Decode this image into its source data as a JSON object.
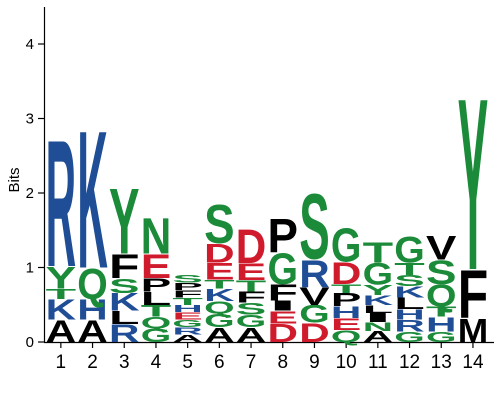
{
  "chart_data": {
    "type": "sequence-logo",
    "title": "",
    "xlabel": "",
    "ylabel": "Bits",
    "ylim": [
      0,
      4.5
    ],
    "yticks": [
      0,
      1,
      2,
      3,
      4
    ],
    "colors": {
      "basic": "#1f4e96",
      "polar": "#1b8b3a",
      "acidic": "#d01b2d",
      "hydrophobic": "#000000"
    },
    "positions": [
      {
        "label": "1",
        "stack": [
          [
            "A",
            0.3,
            "hydrophobic"
          ],
          [
            "K",
            0.28,
            "basic"
          ],
          [
            "T",
            0.14,
            "polar"
          ],
          [
            "Y",
            0.3,
            "polar"
          ],
          [
            "R",
            1.75,
            "basic"
          ]
        ]
      },
      {
        "label": "2",
        "stack": [
          [
            "A",
            0.3,
            "hydrophobic"
          ],
          [
            "H",
            0.28,
            "basic"
          ],
          [
            "Q",
            0.42,
            "polar"
          ],
          [
            "K",
            1.9,
            "basic"
          ]
        ]
      },
      {
        "label": "3",
        "stack": [
          [
            "R",
            0.24,
            "basic"
          ],
          [
            "L",
            0.18,
            "hydrophobic"
          ],
          [
            "K",
            0.24,
            "basic"
          ],
          [
            "S",
            0.2,
            "polar"
          ],
          [
            "F",
            0.33,
            "hydrophobic"
          ],
          [
            "Y",
            0.91,
            "polar"
          ]
        ]
      },
      {
        "label": "4",
        "stack": [
          [
            "G",
            0.19,
            "polar"
          ],
          [
            "Q",
            0.15,
            "polar"
          ],
          [
            "T",
            0.16,
            "polar"
          ],
          [
            "L",
            0.18,
            "hydrophobic"
          ],
          [
            "P",
            0.18,
            "hydrophobic"
          ],
          [
            "E",
            0.33,
            "acidic"
          ],
          [
            "N",
            0.49,
            "polar"
          ]
        ]
      },
      {
        "label": "5",
        "stack": [
          [
            "A",
            0.1,
            "hydrophobic"
          ],
          [
            "R",
            0.1,
            "basic"
          ],
          [
            "G",
            0.1,
            "polar"
          ],
          [
            "E",
            0.1,
            "acidic"
          ],
          [
            "H",
            0.1,
            "basic"
          ],
          [
            "T",
            0.1,
            "polar"
          ],
          [
            "F",
            0.1,
            "hydrophobic"
          ],
          [
            "P",
            0.1,
            "hydrophobic"
          ],
          [
            "S",
            0.11,
            "polar"
          ]
        ]
      },
      {
        "label": "6",
        "stack": [
          [
            "A",
            0.2,
            "hydrophobic"
          ],
          [
            "G",
            0.18,
            "polar"
          ],
          [
            "Q",
            0.17,
            "polar"
          ],
          [
            "K",
            0.17,
            "basic"
          ],
          [
            "T",
            0.12,
            "polar"
          ],
          [
            "E",
            0.23,
            "acidic"
          ],
          [
            "D",
            0.26,
            "acidic"
          ],
          [
            "S",
            0.53,
            "polar"
          ]
        ]
      },
      {
        "label": "7",
        "stack": [
          [
            "A",
            0.2,
            "hydrophobic"
          ],
          [
            "G",
            0.17,
            "polar"
          ],
          [
            "S",
            0.16,
            "polar"
          ],
          [
            "F",
            0.15,
            "hydrophobic"
          ],
          [
            "T",
            0.15,
            "polar"
          ],
          [
            "E",
            0.23,
            "acidic"
          ],
          [
            "D",
            0.47,
            "acidic"
          ]
        ]
      },
      {
        "label": "8",
        "stack": [
          [
            "D",
            0.25,
            "acidic"
          ],
          [
            "E",
            0.17,
            "acidic"
          ],
          [
            "I",
            0.14,
            "hydrophobic"
          ],
          [
            "F",
            0.22,
            "hydrophobic"
          ],
          [
            "G",
            0.43,
            "polar"
          ],
          [
            "P",
            0.47,
            "hydrophobic"
          ]
        ]
      },
      {
        "label": "9",
        "stack": [
          [
            "D",
            0.26,
            "acidic"
          ],
          [
            "G",
            0.24,
            "polar"
          ],
          [
            "V",
            0.24,
            "hydrophobic"
          ],
          [
            "R",
            0.38,
            "basic"
          ],
          [
            "S",
            0.9,
            "polar"
          ]
        ]
      },
      {
        "label": "10",
        "stack": [
          [
            "Q",
            0.16,
            "polar"
          ],
          [
            "E",
            0.16,
            "acidic"
          ],
          [
            "H",
            0.16,
            "basic"
          ],
          [
            "P",
            0.18,
            "hydrophobic"
          ],
          [
            "T",
            0.12,
            "polar"
          ],
          [
            "D",
            0.3,
            "acidic"
          ],
          [
            "G",
            0.47,
            "polar"
          ]
        ]
      },
      {
        "label": "11",
        "stack": [
          [
            "A",
            0.15,
            "hydrophobic"
          ],
          [
            "N",
            0.12,
            "polar"
          ],
          [
            "I",
            0.12,
            "hydrophobic"
          ],
          [
            "L",
            0.11,
            "hydrophobic"
          ],
          [
            "K",
            0.13,
            "basic"
          ],
          [
            "Y",
            0.14,
            "polar"
          ],
          [
            "G",
            0.3,
            "polar"
          ],
          [
            "T",
            0.28,
            "polar"
          ]
        ]
      },
      {
        "label": "12",
        "stack": [
          [
            "G",
            0.14,
            "polar"
          ],
          [
            "R",
            0.16,
            "basic"
          ],
          [
            "H",
            0.14,
            "basic"
          ],
          [
            "L",
            0.16,
            "hydrophobic"
          ],
          [
            "K",
            0.15,
            "basic"
          ],
          [
            "S",
            0.15,
            "polar"
          ],
          [
            "T",
            0.17,
            "polar"
          ],
          [
            "G",
            0.36,
            "polar"
          ]
        ]
      },
      {
        "label": "13",
        "stack": [
          [
            "G",
            0.14,
            "polar"
          ],
          [
            "H",
            0.2,
            "basic"
          ],
          [
            "T",
            0.14,
            "polar"
          ],
          [
            "Q",
            0.3,
            "polar"
          ],
          [
            "S",
            0.33,
            "polar"
          ],
          [
            "V",
            0.33,
            "hydrophobic"
          ]
        ]
      },
      {
        "label": "14",
        "stack": [
          [
            "M",
            0.32,
            "hydrophobic"
          ],
          [
            "F",
            0.66,
            "hydrophobic"
          ],
          [
            "Y",
            2.37,
            "polar"
          ]
        ]
      }
    ]
  }
}
